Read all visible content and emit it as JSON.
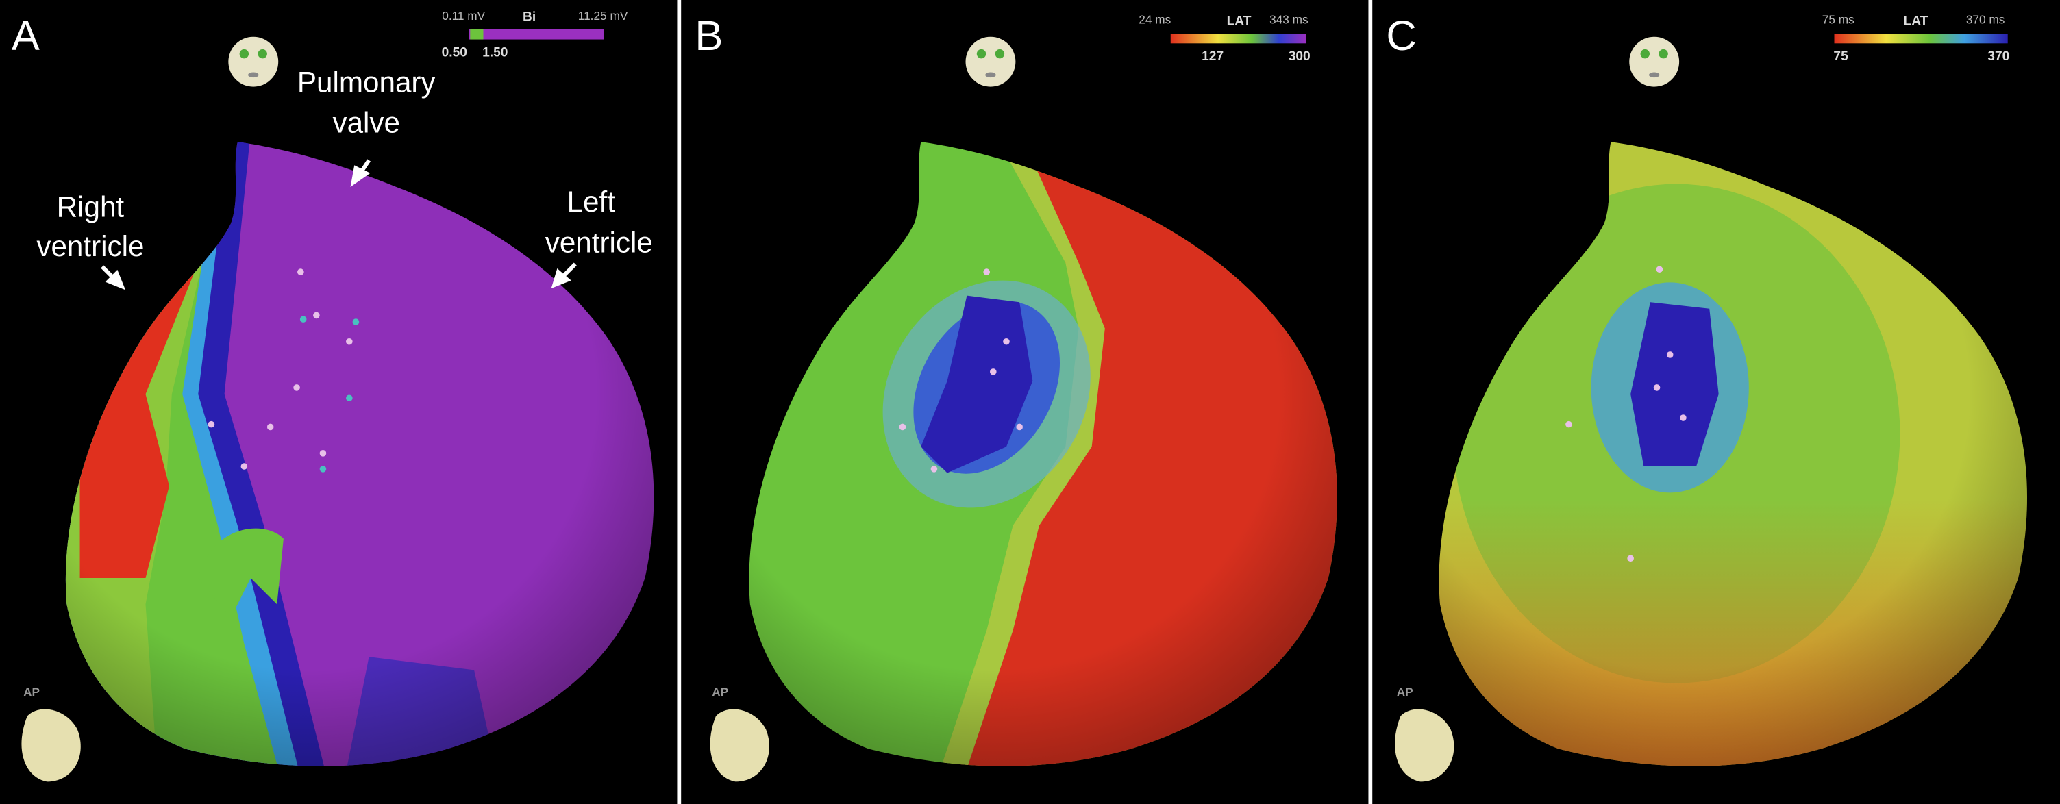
{
  "panels": [
    {
      "label": "A",
      "legend": {
        "min": "0.11 mV",
        "title": "Bi",
        "max": "11.25 mV",
        "low": "0.50",
        "high": "1.50"
      },
      "annotations": {
        "pulmonary": [
          "Pulmonary",
          "valve"
        ],
        "right": [
          "Right",
          "ventricle"
        ],
        "left": [
          "Left",
          "ventricle"
        ]
      },
      "view": "AP"
    },
    {
      "label": "B",
      "legend": {
        "min": "24 ms",
        "title": "LAT",
        "max": "343 ms",
        "low": "127",
        "high": "300"
      },
      "view": "AP"
    },
    {
      "label": "C",
      "legend": {
        "min": "75 ms",
        "title": "LAT",
        "max": "370 ms",
        "low": "75",
        "high": "370"
      },
      "view": "AP"
    }
  ]
}
